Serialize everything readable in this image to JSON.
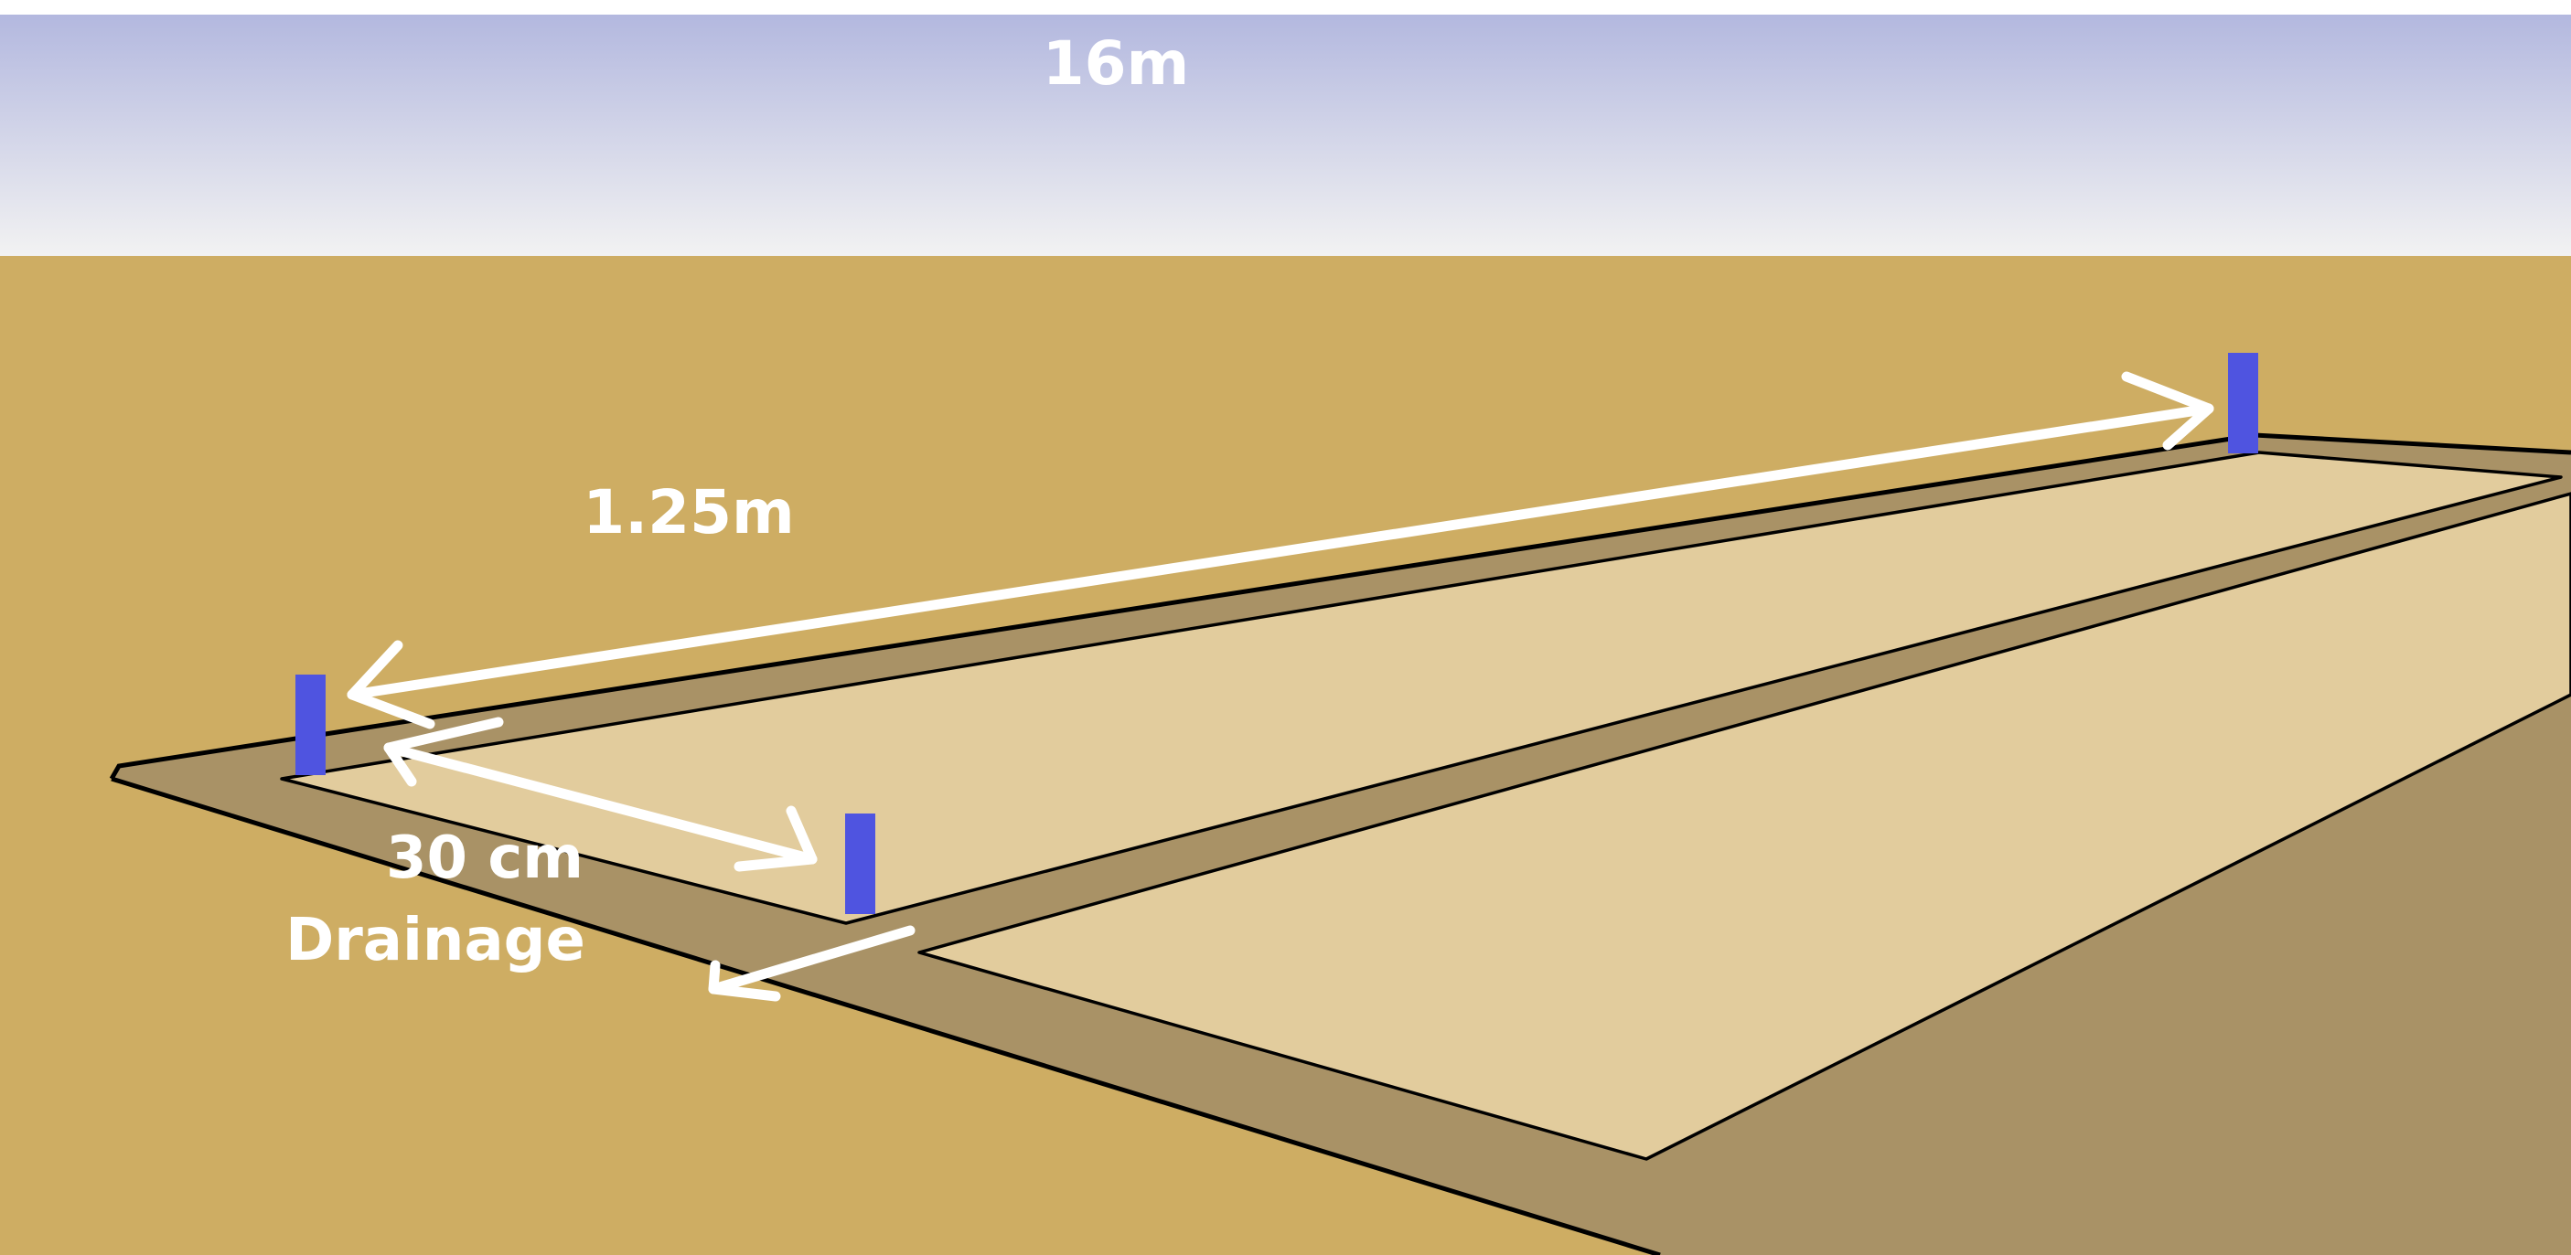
{
  "labels": {
    "total_length": "16m",
    "bed_width": "1.25m",
    "path_width": "30 cm",
    "drainage": "Drainage"
  },
  "colors": {
    "sky_top": "#b3b8df",
    "sky_bottom": "#f2f2f2",
    "ground": "#cead63",
    "trench": "#a99266",
    "bed": "#e2cc9d",
    "marker": "#4f54e0",
    "arrow": "#ffffff",
    "outline": "#000000"
  }
}
